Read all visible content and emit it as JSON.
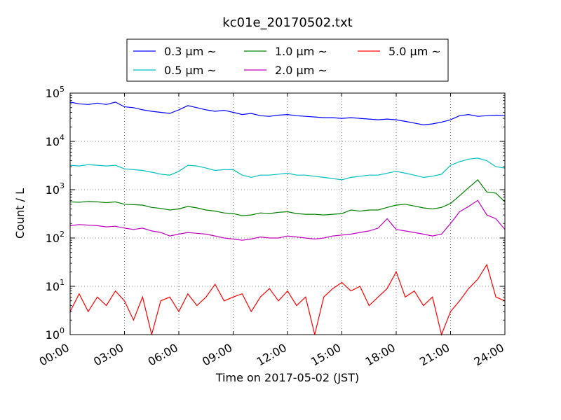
{
  "chart_data": {
    "type": "line",
    "title": "kc01e_20170502.txt",
    "xlabel": "Time on 2017-05-02 (JST)",
    "ylabel": "Count / L",
    "yscale": "log",
    "ylim": [
      1,
      100000
    ],
    "xlim": [
      "00:00",
      "24:00"
    ],
    "grid": true,
    "legend_position": "top-center, above plot",
    "x_tick_labels": [
      "00:00",
      "03:00",
      "06:00",
      "09:00",
      "12:00",
      "15:00",
      "18:00",
      "21:00",
      "24:00"
    ],
    "y_tick_labels": [
      {
        "base": "10",
        "exp": "0"
      },
      {
        "base": "10",
        "exp": "1"
      },
      {
        "base": "10",
        "exp": "2"
      },
      {
        "base": "10",
        "exp": "3"
      },
      {
        "base": "10",
        "exp": "4"
      },
      {
        "base": "10",
        "exp": "5"
      }
    ],
    "series": [
      {
        "name": "0.3 μm ~",
        "color": "#0000ff",
        "x": [
          "00:00",
          "00:30",
          "01:00",
          "01:30",
          "02:00",
          "02:30",
          "03:00",
          "03:30",
          "04:00",
          "04:30",
          "05:00",
          "05:30",
          "06:00",
          "06:30",
          "07:00",
          "07:30",
          "08:00",
          "08:30",
          "09:00",
          "09:30",
          "10:00",
          "10:30",
          "11:00",
          "11:30",
          "12:00",
          "12:30",
          "13:00",
          "13:30",
          "14:00",
          "14:30",
          "15:00",
          "15:30",
          "16:00",
          "16:30",
          "17:00",
          "17:30",
          "18:00",
          "18:30",
          "19:00",
          "19:30",
          "20:00",
          "20:30",
          "21:00",
          "21:30",
          "22:00",
          "22:30",
          "23:00",
          "23:30",
          "24:00"
        ],
        "y": [
          65000,
          60000,
          58000,
          62000,
          58000,
          65000,
          52000,
          50000,
          45000,
          42000,
          40000,
          38000,
          45000,
          55000,
          50000,
          45000,
          42000,
          44000,
          40000,
          36000,
          38000,
          34000,
          33000,
          35000,
          36000,
          34000,
          33000,
          32000,
          31000,
          31000,
          30000,
          31000,
          30000,
          29000,
          28000,
          29000,
          28000,
          26000,
          24000,
          22000,
          23000,
          25000,
          28000,
          34000,
          36000,
          33000,
          34000,
          35000,
          34000
        ]
      },
      {
        "name": "0.5 μm ~",
        "color": "#00bfbf",
        "x": [
          "00:00",
          "00:30",
          "01:00",
          "01:30",
          "02:00",
          "02:30",
          "03:00",
          "03:30",
          "04:00",
          "04:30",
          "05:00",
          "05:30",
          "06:00",
          "06:30",
          "07:00",
          "07:30",
          "08:00",
          "08:30",
          "09:00",
          "09:30",
          "10:00",
          "10:30",
          "11:00",
          "11:30",
          "12:00",
          "12:30",
          "13:00",
          "13:30",
          "14:00",
          "14:30",
          "15:00",
          "15:30",
          "16:00",
          "16:30",
          "17:00",
          "17:30",
          "18:00",
          "18:30",
          "19:00",
          "19:30",
          "20:00",
          "20:30",
          "21:00",
          "21:30",
          "22:00",
          "22:30",
          "23:00",
          "23:30",
          "24:00"
        ],
        "y": [
          3200,
          3100,
          3300,
          3200,
          3100,
          3200,
          2700,
          2600,
          2500,
          2300,
          2100,
          2000,
          2400,
          3200,
          3100,
          2800,
          2500,
          2600,
          2600,
          2000,
          1800,
          2000,
          2000,
          2100,
          2200,
          2000,
          2000,
          1900,
          1800,
          1700,
          1600,
          1800,
          1900,
          2000,
          2000,
          2200,
          2400,
          2200,
          2000,
          1800,
          1900,
          2100,
          3200,
          3800,
          4300,
          4500,
          4000,
          3000,
          2800
        ]
      },
      {
        "name": "1.0 μm ~",
        "color": "#008000",
        "x": [
          "00:00",
          "00:30",
          "01:00",
          "01:30",
          "02:00",
          "02:30",
          "03:00",
          "03:30",
          "04:00",
          "04:30",
          "05:00",
          "05:30",
          "06:00",
          "06:30",
          "07:00",
          "07:30",
          "08:00",
          "08:30",
          "09:00",
          "09:30",
          "10:00",
          "10:30",
          "11:00",
          "11:30",
          "12:00",
          "12:30",
          "13:00",
          "13:30",
          "14:00",
          "14:30",
          "15:00",
          "15:30",
          "16:00",
          "16:30",
          "17:00",
          "17:30",
          "18:00",
          "18:30",
          "19:00",
          "19:30",
          "20:00",
          "20:30",
          "21:00",
          "21:30",
          "22:00",
          "22:30",
          "23:00",
          "23:30",
          "24:00"
        ],
        "y": [
          560,
          550,
          570,
          560,
          540,
          560,
          500,
          490,
          480,
          430,
          410,
          380,
          400,
          450,
          420,
          380,
          360,
          330,
          320,
          290,
          300,
          330,
          320,
          340,
          350,
          320,
          310,
          310,
          300,
          310,
          320,
          380,
          360,
          380,
          380,
          430,
          480,
          500,
          460,
          420,
          400,
          430,
          520,
          750,
          1100,
          1600,
          900,
          850,
          560
        ]
      },
      {
        "name": "2.0 μm ~",
        "color": "#bf00bf",
        "x": [
          "00:00",
          "00:30",
          "01:00",
          "01:30",
          "02:00",
          "02:30",
          "03:00",
          "03:30",
          "04:00",
          "04:30",
          "05:00",
          "05:30",
          "06:00",
          "06:30",
          "07:00",
          "07:30",
          "08:00",
          "08:30",
          "09:00",
          "09:30",
          "10:00",
          "10:30",
          "11:00",
          "11:30",
          "12:00",
          "12:30",
          "13:00",
          "13:30",
          "14:00",
          "14:30",
          "15:00",
          "15:30",
          "16:00",
          "16:30",
          "17:00",
          "17:30",
          "18:00",
          "18:30",
          "19:00",
          "19:30",
          "20:00",
          "20:30",
          "21:00",
          "21:30",
          "22:00",
          "22:30",
          "23:00",
          "23:30",
          "24:00"
        ],
        "y": [
          180,
          190,
          185,
          180,
          170,
          175,
          160,
          150,
          160,
          140,
          130,
          110,
          120,
          130,
          125,
          120,
          110,
          100,
          95,
          90,
          95,
          105,
          100,
          100,
          110,
          105,
          100,
          95,
          100,
          110,
          115,
          120,
          130,
          140,
          160,
          250,
          150,
          140,
          130,
          120,
          110,
          120,
          200,
          350,
          450,
          600,
          300,
          250,
          150
        ]
      },
      {
        "name": "5.0 μm ~",
        "color": "#ff0000",
        "x": [
          "00:00",
          "00:30",
          "01:00",
          "01:30",
          "02:00",
          "02:30",
          "03:00",
          "03:30",
          "04:00",
          "04:30",
          "05:00",
          "05:30",
          "06:00",
          "06:30",
          "07:00",
          "07:30",
          "08:00",
          "08:30",
          "09:00",
          "09:30",
          "10:00",
          "10:30",
          "11:00",
          "11:30",
          "12:00",
          "12:30",
          "13:00",
          "13:30",
          "14:00",
          "14:30",
          "15:00",
          "15:30",
          "16:00",
          "16:30",
          "17:00",
          "17:30",
          "18:00",
          "18:30",
          "19:00",
          "19:30",
          "20:00",
          "20:30",
          "21:00",
          "21:30",
          "22:00",
          "22:30",
          "23:00",
          "23:30",
          "24:00"
        ],
        "y": [
          3,
          7,
          3,
          6,
          4,
          8,
          5,
          2,
          6,
          1,
          5,
          6,
          3,
          7,
          4,
          6,
          11,
          5,
          6,
          7,
          3,
          6,
          9,
          5,
          8,
          4,
          6,
          1,
          6,
          9,
          12,
          8,
          10,
          4,
          6,
          9,
          20,
          6,
          8,
          4,
          6,
          1,
          3,
          5,
          9,
          14,
          28,
          6,
          5
        ]
      }
    ]
  }
}
